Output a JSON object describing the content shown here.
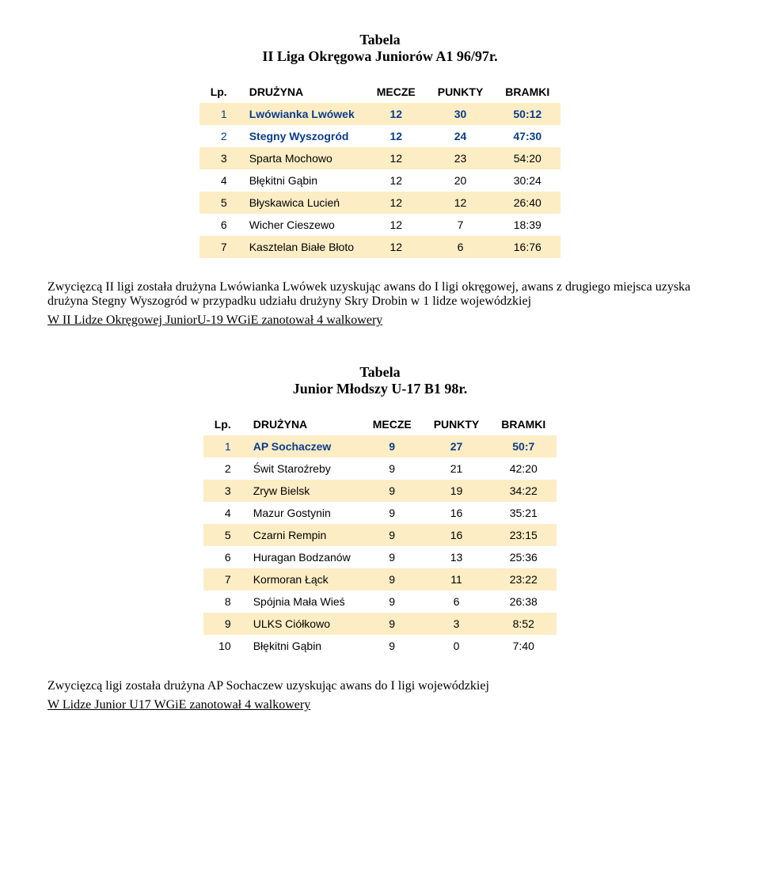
{
  "section1": {
    "title_l1": "Tabela",
    "title_l2": "II Liga Okręgowa Juniorów A1 96/97r.",
    "headers": {
      "lp": "Lp.",
      "team": "DRUŻYNA",
      "m": "MECZE",
      "p": "PUNKTY",
      "b": "BRAMKI"
    },
    "rows": [
      {
        "n": "1",
        "team": "Lwówianka Lwówek",
        "m": "12",
        "p": "30",
        "b": "50:12",
        "promoted": true
      },
      {
        "n": "2",
        "team": "Stegny Wyszogród",
        "m": "12",
        "p": "24",
        "b": "47:30",
        "promoted": true
      },
      {
        "n": "3",
        "team": "Sparta Mochowo",
        "m": "12",
        "p": "23",
        "b": "54:20"
      },
      {
        "n": "4",
        "team": "Błękitni Gąbin",
        "m": "12",
        "p": "20",
        "b": "30:24"
      },
      {
        "n": "5",
        "team": "Błyskawica Lucień",
        "m": "12",
        "p": "12",
        "b": "26:40"
      },
      {
        "n": "6",
        "team": "Wicher Cieszewo",
        "m": "12",
        "p": "7",
        "b": "18:39"
      },
      {
        "n": "7",
        "team": "Kasztelan Białe Błoto",
        "m": "12",
        "p": "6",
        "b": "16:76"
      }
    ],
    "note1": "Zwycięzcą II ligi została drużyna Lwówianka Lwówek uzyskując awans do I ligi okręgowej, awans z drugiego miejsca uzyska drużyna Stegny Wyszogród w przypadku udziału drużyny Skry Drobin w 1 lidze wojewódzkiej",
    "note2": "W II  Lidze Okręgowej JuniorU-19 WGiE  zanotował 4 walkowery"
  },
  "section2": {
    "title_l1": "Tabela",
    "title_l2": "Junior Młodszy U-17 B1 98r.",
    "headers": {
      "lp": "Lp.",
      "team": "DRUŻYNA",
      "m": "MECZE",
      "p": "PUNKTY",
      "b": "BRAMKI"
    },
    "rows": [
      {
        "n": "1",
        "team": "AP Sochaczew",
        "m": "9",
        "p": "27",
        "b": "50:7",
        "promoted": true
      },
      {
        "n": "2",
        "team": "Świt Staroźreby",
        "m": "9",
        "p": "21",
        "b": "42:20"
      },
      {
        "n": "3",
        "team": "Zryw Bielsk",
        "m": "9",
        "p": "19",
        "b": "34:22"
      },
      {
        "n": "4",
        "team": "Mazur Gostynin",
        "m": "9",
        "p": "16",
        "b": "35:21"
      },
      {
        "n": "5",
        "team": "Czarni Rempin",
        "m": "9",
        "p": "16",
        "b": "23:15"
      },
      {
        "n": "6",
        "team": "Huragan Bodzanów",
        "m": "9",
        "p": "13",
        "b": "25:36"
      },
      {
        "n": "7",
        "team": "Kormoran Łąck",
        "m": "9",
        "p": "11",
        "b": "23:22"
      },
      {
        "n": "8",
        "team": "Spójnia Mała Wieś",
        "m": "9",
        "p": "6",
        "b": "26:38"
      },
      {
        "n": "9",
        "team": "ULKS Ciółkowo",
        "m": "9",
        "p": "3",
        "b": "8:52"
      },
      {
        "n": "10",
        "team": "Błękitni Gąbin",
        "m": "9",
        "p": "0",
        "b": "7:40"
      }
    ],
    "note1": "Zwycięzcą ligi została drużyna AP Sochaczew uzyskując awans do I ligi wojewódzkiej",
    "note2": "W Lidze  Junior U17  WGiE  zanotował 4 walkowery"
  },
  "colors": {
    "row_odd_bg": "#fdedc5",
    "promoted_text": "#0a3c8c"
  }
}
